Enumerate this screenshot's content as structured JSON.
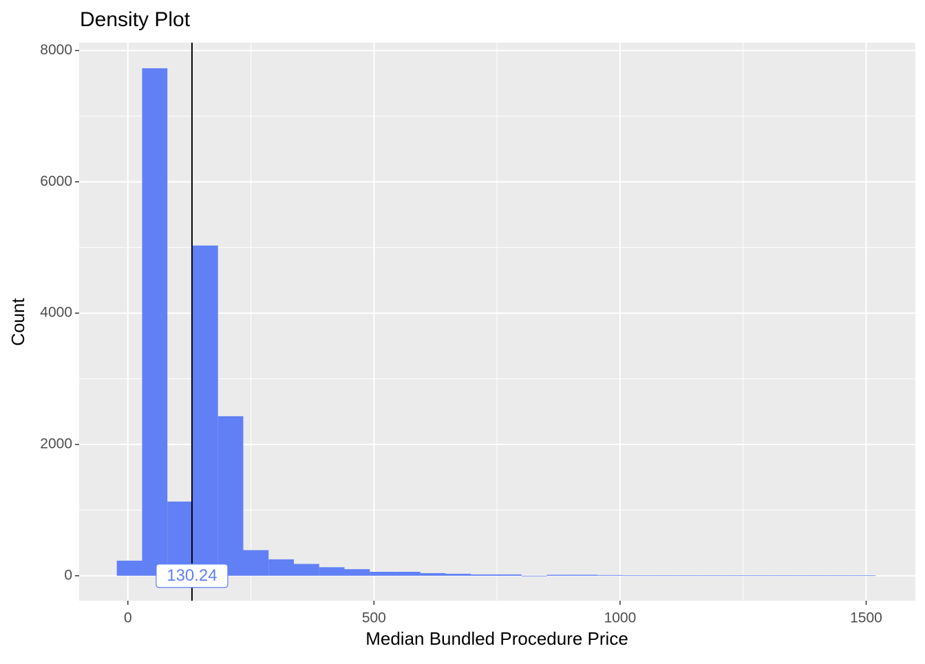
{
  "chart_data": {
    "type": "histogram",
    "title": "Density Plot",
    "x_label": "Median Bundled Procedure Price",
    "y_label": "Count",
    "bins": [
      -22.5,
      28.9,
      80.3,
      131.7,
      183.1,
      234.5,
      285.9,
      337.3,
      388.7,
      440.1,
      491.5,
      542.9,
      594.3,
      645.7,
      697.1,
      748.5,
      799.9,
      851.3,
      902.7,
      954.1,
      1005.5,
      1056.9,
      1108.3,
      1159.7,
      1211.1,
      1262.5,
      1313.9,
      1365.3,
      1416.7,
      1468.1,
      1519.5
    ],
    "counts": [
      230,
      7730,
      1130,
      5030,
      2430,
      390,
      250,
      180,
      130,
      100,
      60,
      60,
      40,
      30,
      20,
      20,
      0,
      15,
      15,
      10,
      5,
      5,
      5,
      5,
      5,
      5,
      5,
      5,
      5,
      5
    ],
    "color": "#6180f5",
    "median_line": {
      "value": 130.24
    },
    "xlim": [
      -99,
      1600
    ],
    "xticks": [
      0,
      500,
      1000,
      1500
    ],
    "ylim": [
      -380,
      8120
    ],
    "yticks": [
      0,
      2000,
      4000,
      6000,
      8000
    ],
    "grid": true
  }
}
